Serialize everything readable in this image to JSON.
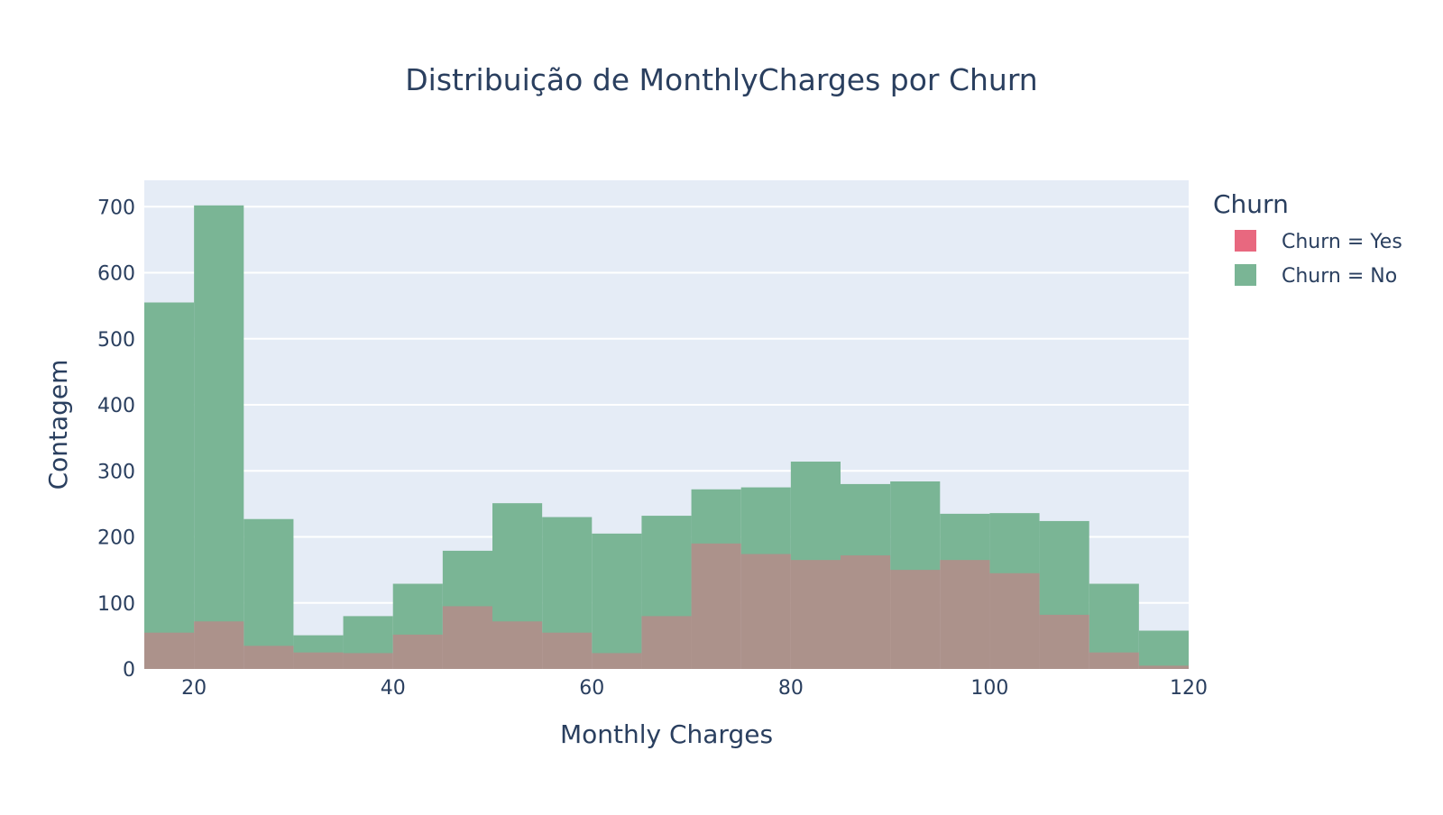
{
  "chart_data": {
    "type": "histogram",
    "title": "Distribuição de MonthlyCharges por Churn",
    "xlabel": "Monthly Charges",
    "ylabel": "Contagem",
    "xlim": [
      15,
      120
    ],
    "ylim": [
      0,
      740
    ],
    "x_ticks": [
      20,
      40,
      60,
      80,
      100,
      120
    ],
    "y_ticks": [
      0,
      100,
      200,
      300,
      400,
      500,
      600,
      700
    ],
    "bin_width": 5,
    "bin_starts": [
      15,
      20,
      25,
      30,
      35,
      40,
      45,
      50,
      55,
      60,
      65,
      70,
      75,
      80,
      85,
      90,
      95,
      100,
      105,
      110,
      115
    ],
    "grid": true,
    "legend_title": "Churn",
    "legend_position": "right",
    "plot_background": "#e5ecf6",
    "series": [
      {
        "name": "Churn = Yes",
        "color": "#e8687f",
        "values": [
          55,
          72,
          35,
          25,
          24,
          52,
          95,
          72,
          55,
          24,
          80,
          190,
          174,
          165,
          172,
          150,
          165,
          145,
          82,
          25,
          5
        ]
      },
      {
        "name": "Churn = No",
        "color": "#7ab595",
        "values": [
          555,
          702,
          227,
          51,
          80,
          129,
          179,
          251,
          230,
          205,
          232,
          272,
          275,
          314,
          280,
          284,
          235,
          236,
          224,
          129,
          58
        ]
      }
    ]
  }
}
